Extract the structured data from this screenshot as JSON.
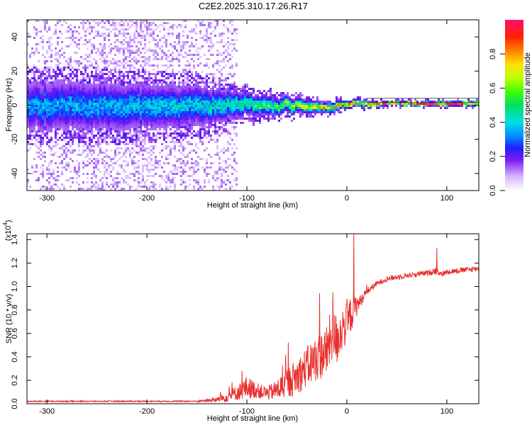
{
  "figure_title": "C2E2.2025.310.17.26.R17",
  "chart_data": [
    {
      "type": "heatmap",
      "title": "C2E2.2025.310.17.26.R17",
      "xlabel": "Height of straight line (km)",
      "ylabel": "Frequency (Hz)",
      "xlim": [
        -320,
        132
      ],
      "ylim": [
        -50,
        50
      ],
      "xticks": [
        -300,
        -200,
        -100,
        0,
        100
      ],
      "xtick_labels": [
        "-300",
        "-200",
        "-100",
        "0",
        "100"
      ],
      "yticks": [
        -40,
        -20,
        0,
        20,
        40
      ],
      "ytick_labels": [
        "-40",
        "-20",
        "0",
        "20",
        "40"
      ],
      "colorbar": {
        "label": "Normalized spectral amplitude",
        "range": [
          0,
          1
        ],
        "ticks": [
          0.0,
          0.2,
          0.4,
          0.6,
          0.8
        ],
        "tick_labels": [
          "0.0",
          "0.2",
          "0.4",
          "0.6",
          "0.8"
        ]
      },
      "ridge": {
        "x": [
          -320,
          -250,
          -200,
          -150,
          -120,
          -100,
          -80,
          -60,
          -40,
          -20,
          -10,
          0,
          10,
          20,
          40,
          60,
          80,
          100,
          132
        ],
        "frequency": [
          0,
          0,
          0,
          0,
          0.5,
          1,
          0,
          1,
          0,
          -1,
          0,
          1,
          2,
          1,
          1.5,
          1.5,
          1.5,
          1.5,
          1.5
        ],
        "amplitude": [
          0.25,
          0.25,
          0.28,
          0.3,
          0.35,
          0.4,
          0.45,
          0.5,
          0.6,
          0.65,
          0.7,
          0.75,
          0.8,
          0.82,
          0.85,
          0.88,
          0.9,
          0.92,
          0.92
        ],
        "spread_hz": [
          14,
          14,
          13,
          12,
          9,
          7,
          6,
          5,
          4,
          3,
          3,
          2.5,
          2,
          2,
          1.5,
          1.5,
          1.5,
          1.5,
          1.5
        ]
      },
      "noise_extent_x": [
        -320,
        -110
      ]
    },
    {
      "type": "line",
      "title": "",
      "xlabel": "Height of straight line (km)",
      "ylabel": "SNR (10 * v/v)",
      "y_multiplier_label": "(x10",
      "y_multiplier_exponent": "4",
      "y_multiplier_close": ")",
      "xlim": [
        -320,
        132
      ],
      "ylim": [
        0,
        1.45
      ],
      "xticks": [
        -300,
        -200,
        -100,
        0,
        100
      ],
      "xtick_labels": [
        "-300",
        "-200",
        "-100",
        "0",
        "100"
      ],
      "yticks": [
        0.0,
        0.2,
        0.4,
        0.6,
        0.8,
        1.0,
        1.2,
        1.4
      ],
      "ytick_labels": [
        "0.0",
        "0.2",
        "0.4",
        "0.6",
        "0.8",
        "1.0",
        "1.2",
        "1.4"
      ],
      "color": "#e8302e",
      "series": [
        {
          "name": "SNR",
          "x": [
            -320,
            -250,
            -200,
            -150,
            -130,
            -120,
            -110,
            -100,
            -90,
            -80,
            -70,
            -60,
            -50,
            -40,
            -30,
            -20,
            -15,
            -10,
            -5,
            0,
            5,
            10,
            15,
            20,
            30,
            40,
            60,
            80,
            90,
            95,
            100,
            110,
            120,
            132
          ],
          "y": [
            0.02,
            0.02,
            0.02,
            0.02,
            0.03,
            0.05,
            0.08,
            0.12,
            0.1,
            0.08,
            0.1,
            0.15,
            0.2,
            0.28,
            0.35,
            0.4,
            0.55,
            0.5,
            0.6,
            0.65,
            0.75,
            0.82,
            0.88,
            0.95,
            1.02,
            1.06,
            1.09,
            1.11,
            1.13,
            1.1,
            1.12,
            1.13,
            1.14,
            1.15
          ],
          "noise": [
            0.005,
            0.005,
            0.005,
            0.006,
            0.02,
            0.04,
            0.06,
            0.09,
            0.06,
            0.05,
            0.08,
            0.12,
            0.14,
            0.16,
            0.18,
            0.2,
            0.22,
            0.2,
            0.18,
            0.16,
            0.14,
            0.08,
            0.04,
            0.03,
            0.02,
            0.02,
            0.02,
            0.02,
            0.03,
            0.02,
            0.02,
            0.02,
            0.02,
            0.02
          ]
        }
      ],
      "spikes": [
        {
          "x": 7,
          "y": 1.45
        },
        {
          "x": -14,
          "y": 0.95
        },
        {
          "x": 90,
          "y": 1.33
        }
      ]
    }
  ]
}
